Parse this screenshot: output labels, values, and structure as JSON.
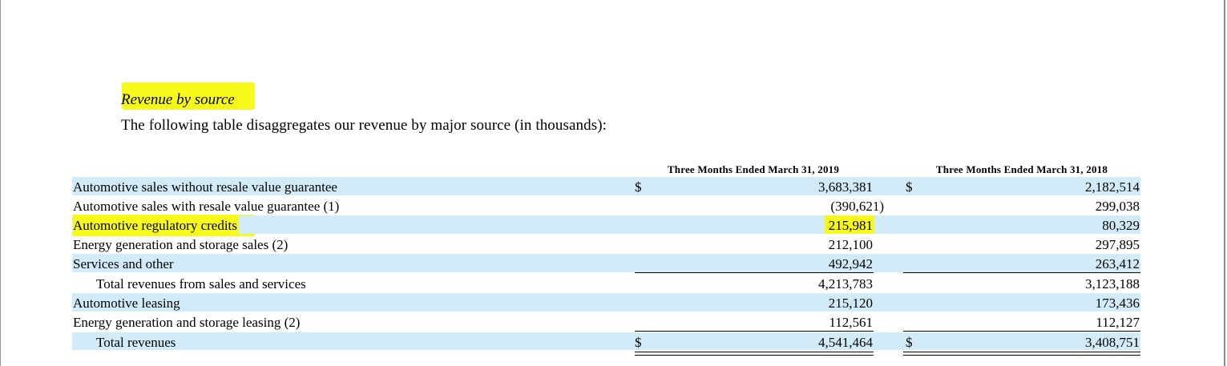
{
  "section_title": "Revenue by source",
  "intro": "The following table disaggregates our revenue by major source (in thousands):",
  "columns": [
    "Three Months Ended March 31, 2019",
    "Three Months Ended March 31, 2018"
  ],
  "rows": [
    {
      "label": "Automotive sales without resale value guarantee",
      "c1_dollar": "$",
      "v1": "3,683,381",
      "c2_dollar": "$",
      "v2": "2,182,514"
    },
    {
      "label": "Automotive sales with resale value guarantee (1)",
      "c1_dollar": "",
      "v1": "(390,621)",
      "c2_dollar": "",
      "v2": "299,038"
    },
    {
      "label": "Automotive regulatory credits",
      "c1_dollar": "",
      "v1": "215,981",
      "c2_dollar": "",
      "v2": "80,329"
    },
    {
      "label": "Energy generation and storage sales (2)",
      "c1_dollar": "",
      "v1": "212,100",
      "c2_dollar": "",
      "v2": "297,895"
    },
    {
      "label": "Services and other",
      "c1_dollar": "",
      "v1": "492,942",
      "c2_dollar": "",
      "v2": "263,412"
    },
    {
      "label": "Total revenues from sales and services",
      "c1_dollar": "",
      "v1": "4,213,783",
      "c2_dollar": "",
      "v2": "3,123,188"
    },
    {
      "label": "Automotive leasing",
      "c1_dollar": "",
      "v1": "215,120",
      "c2_dollar": "",
      "v2": "173,436"
    },
    {
      "label": "Energy generation and storage leasing (2)",
      "c1_dollar": "",
      "v1": "112,561",
      "c2_dollar": "",
      "v2": "112,127"
    },
    {
      "label": "Total revenues",
      "c1_dollar": "$",
      "v1": "4,541,464",
      "c2_dollar": "$",
      "v2": "3,408,751"
    }
  ],
  "highlight_color": "#f6f91a",
  "row_shade_color": "#d1ecf8"
}
